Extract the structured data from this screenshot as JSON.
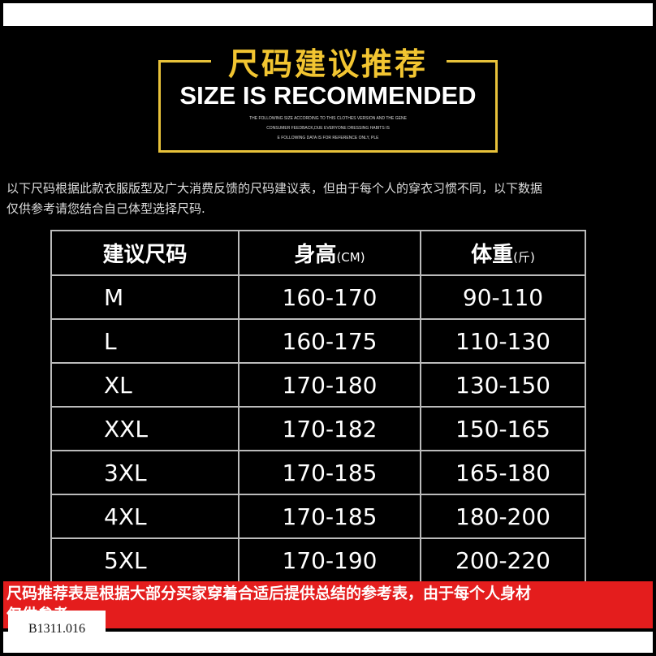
{
  "header": {
    "title_cn": "尺码建议推荐",
    "title_en": "SIZE IS RECOMMENDED",
    "small_lines": [
      "THE FOLLOWING SIZE ACCORDING TO THIS CLOTHES VERSION AND THE GENE",
      "CONSUMER FEEDBACK,DUE EVERYONE DRESSING HABITS IS",
      "E FOLLOWING DATA IS FOR REFERENCE ONLY, PLE"
    ]
  },
  "description": [
    "以下尺码根据此款衣服版型及广大消费反馈的尺码建议表，但由于每个人的穿衣习惯不同，以下数据",
    "仅供参考请您结合自己体型选择尺码."
  ],
  "table": {
    "headers": [
      {
        "label": "建议尺码",
        "unit": ""
      },
      {
        "label": "身高",
        "unit": "(CM)"
      },
      {
        "label": "体重",
        "unit": "(斤)"
      }
    ],
    "rows": [
      [
        "M",
        "160-170",
        "90-110"
      ],
      [
        "L",
        "160-175",
        "110-130"
      ],
      [
        "XL",
        "170-180",
        "130-150"
      ],
      [
        "XXL",
        "170-182",
        "150-165"
      ],
      [
        "3XL",
        "170-185",
        "165-180"
      ],
      [
        "4XL",
        "170-185",
        "180-200"
      ],
      [
        "5XL",
        "170-190",
        "200-220"
      ]
    ]
  },
  "notice": [
    "尺码推荐表是根据大部分买家穿着合适后提供总结的参考表，由于每个人身材",
    "仅供参考。"
  ],
  "product_code": "B1311.016",
  "colors": {
    "accent": "#f2c531",
    "notice_bg": "#e41d1d"
  }
}
